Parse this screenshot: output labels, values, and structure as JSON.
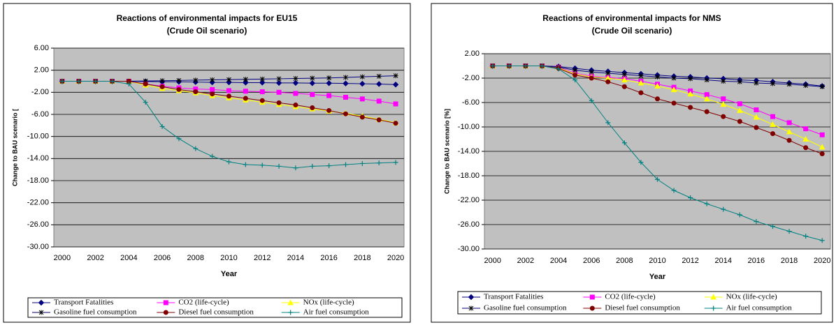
{
  "chart_data": [
    {
      "type": "line",
      "title": "Reactions of environmental impacts for EU15",
      "subtitle": "(Crude Oil scenario)",
      "x_label": "Year",
      "y_label": "Change to BAU scenario [",
      "categories": [
        2000,
        null,
        2002,
        null,
        2004,
        null,
        2006,
        null,
        2008,
        null,
        2010,
        null,
        2012,
        null,
        2014,
        null,
        2016,
        null,
        2018,
        null,
        2020
      ],
      "ylim": [
        -30,
        6
      ],
      "yticks": [
        {
          "value": -30,
          "label": "-30.00"
        },
        {
          "value": -26,
          "label": "-26.00"
        },
        {
          "value": -22,
          "label": "-22.00"
        },
        {
          "value": -18,
          "label": "-18.00"
        },
        {
          "value": -14,
          "label": "-14.00"
        },
        {
          "value": -10,
          "label": "-10.00"
        },
        {
          "value": -6,
          "label": "-6.00"
        },
        {
          "value": -2,
          "label": "-2.00"
        },
        {
          "value": 2,
          "label": "2.00"
        },
        {
          "value": 6,
          "label": "6.00"
        }
      ],
      "grid": true,
      "series": [
        {
          "name": "Transport Fatalities",
          "color": "#000080",
          "marker": "diamond",
          "values": [
            0,
            0,
            0,
            0,
            0,
            -0.05,
            -0.1,
            -0.1,
            -0.15,
            -0.2,
            -0.2,
            -0.25,
            -0.25,
            -0.3,
            -0.3,
            -0.35,
            -0.35,
            -0.4,
            -0.45,
            -0.5,
            -0.6
          ]
        },
        {
          "name": "CO2 (life-cycle)",
          "color": "#ff00ff",
          "marker": "square",
          "values": [
            0,
            0,
            0,
            0,
            0,
            -0.5,
            -0.9,
            -1.2,
            -1.4,
            -1.5,
            -1.7,
            -1.8,
            -1.9,
            -2.0,
            -2.2,
            -2.4,
            -2.6,
            -2.9,
            -3.2,
            -3.6,
            -4.1
          ]
        },
        {
          "name": "NOx (life-cycle)",
          "color": "#ffff00",
          "marker": "triangle",
          "values": [
            0,
            0,
            0,
            0,
            0,
            -0.7,
            -1.3,
            -1.7,
            -2.1,
            -2.6,
            -3.0,
            -3.4,
            -3.8,
            -4.2,
            -4.6,
            -5.0,
            -5.4,
            -5.8,
            -6.3,
            -6.9,
            -7.5
          ]
        },
        {
          "name": "Gasoline fuel consumption",
          "color": "#000080",
          "marker": "star",
          "values": [
            0,
            0,
            0,
            0,
            0,
            0.05,
            0.1,
            0.15,
            0.2,
            0.25,
            0.3,
            0.35,
            0.4,
            0.45,
            0.5,
            0.55,
            0.6,
            0.7,
            0.8,
            0.9,
            1.0
          ]
        },
        {
          "name": "Diesel fuel consumption",
          "color": "#800000",
          "marker": "circle",
          "values": [
            0,
            0,
            0,
            0,
            0,
            -0.5,
            -1.0,
            -1.5,
            -1.9,
            -2.3,
            -2.7,
            -3.1,
            -3.5,
            -3.9,
            -4.3,
            -4.8,
            -5.3,
            -5.9,
            -6.5,
            -7.0,
            -7.6
          ]
        },
        {
          "name": "Air fuel consumption",
          "color": "#008080",
          "marker": "plus",
          "values": [
            0,
            0,
            0,
            0,
            -0.5,
            -3.8,
            -8.2,
            -10.4,
            -12.2,
            -13.6,
            -14.6,
            -15.1,
            -15.2,
            -15.4,
            -15.7,
            -15.4,
            -15.3,
            -15.1,
            -14.9,
            -14.8,
            -14.7
          ]
        }
      ]
    },
    {
      "type": "line",
      "title": "Reactions of environmental impacts for NMS",
      "subtitle": "(Crude Oil scenario)",
      "x_label": "Year",
      "y_label": "Change to BAU scenario [%]",
      "categories": [
        2000,
        null,
        2002,
        null,
        2004,
        null,
        2006,
        null,
        2008,
        null,
        2010,
        null,
        2012,
        null,
        2014,
        null,
        2016,
        null,
        2018,
        null,
        2020
      ],
      "ylim": [
        -30,
        2
      ],
      "yticks": [
        {
          "value": -30,
          "label": "-30.00"
        },
        {
          "value": -26,
          "label": "-26.00"
        },
        {
          "value": -22,
          "label": "-22.00"
        },
        {
          "value": -18,
          "label": "-18.00"
        },
        {
          "value": -14,
          "label": "-14.00"
        },
        {
          "value": -10,
          "label": "-10.00"
        },
        {
          "value": -6,
          "label": "-6.00"
        },
        {
          "value": -2,
          "label": "-2.00"
        },
        {
          "value": 2,
          "label": "2.00"
        }
      ],
      "grid": true,
      "series": [
        {
          "name": "Transport Fatalities",
          "color": "#000080",
          "marker": "diamond",
          "values": [
            0,
            0,
            0,
            0,
            -0.1,
            -0.4,
            -0.7,
            -0.9,
            -1.1,
            -1.3,
            -1.5,
            -1.7,
            -1.8,
            -2.0,
            -2.1,
            -2.3,
            -2.4,
            -2.6,
            -2.8,
            -3.0,
            -3.3
          ]
        },
        {
          "name": "CO2 (life-cycle)",
          "color": "#ff00ff",
          "marker": "square",
          "values": [
            0,
            0,
            0,
            0,
            -0.2,
            -1.2,
            -1.7,
            -1.9,
            -2.1,
            -2.5,
            -3.0,
            -3.5,
            -4.1,
            -4.7,
            -5.4,
            -6.2,
            -7.2,
            -8.3,
            -9.3,
            -10.3,
            -11.3
          ]
        },
        {
          "name": "NOx (life-cycle)",
          "color": "#ffff00",
          "marker": "triangle",
          "values": [
            0,
            0,
            0,
            0,
            -0.3,
            -1.3,
            -1.8,
            -2.0,
            -2.3,
            -2.8,
            -3.3,
            -3.9,
            -4.6,
            -5.4,
            -6.3,
            -7.3,
            -8.4,
            -9.6,
            -10.8,
            -12.0,
            -13.3
          ]
        },
        {
          "name": "Gasoline fuel consumption",
          "color": "#000080",
          "marker": "star",
          "values": [
            0,
            0,
            0,
            0,
            -0.2,
            -0.7,
            -1.0,
            -1.2,
            -1.4,
            -1.6,
            -1.8,
            -2.0,
            -2.1,
            -2.3,
            -2.5,
            -2.6,
            -2.8,
            -2.9,
            -3.0,
            -3.2,
            -3.4
          ]
        },
        {
          "name": "Diesel fuel consumption",
          "color": "#800000",
          "marker": "circle",
          "values": [
            0,
            0,
            0,
            0,
            -0.4,
            -1.5,
            -2.0,
            -2.6,
            -3.4,
            -4.4,
            -5.4,
            -6.1,
            -6.8,
            -7.5,
            -8.3,
            -9.1,
            -10.1,
            -11.1,
            -12.2,
            -13.4,
            -14.4
          ]
        },
        {
          "name": "Air fuel consumption",
          "color": "#008080",
          "marker": "plus",
          "values": [
            0,
            0,
            0,
            0,
            -0.5,
            -2.3,
            -5.7,
            -9.3,
            -12.6,
            -15.8,
            -18.6,
            -20.4,
            -21.6,
            -22.6,
            -23.5,
            -24.4,
            -25.5,
            -26.3,
            -27.1,
            -27.9,
            -28.6
          ]
        }
      ]
    }
  ]
}
